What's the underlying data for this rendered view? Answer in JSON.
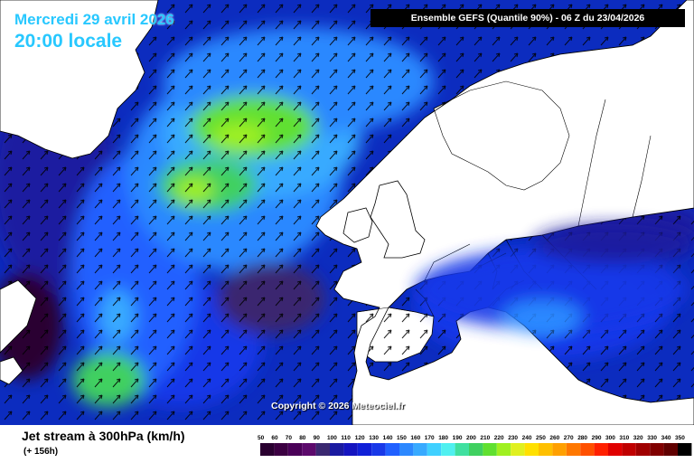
{
  "header": {
    "date_line": "Mercredi 29 avril 2026",
    "time_line": "20:00 locale",
    "run_label": "Ensemble GEFS  (Quantile 90%) - 06 Z du 23/04/2026"
  },
  "map": {
    "copyright": "Copyright © 2026 Meteociel.fr",
    "ocean_background": "#0c2cbf"
  },
  "footer": {
    "title": "Jet stream à 300hPa (km/h)",
    "subtitle": "(+ 156h)"
  },
  "legend": {
    "labels": [
      "50",
      "60",
      "70",
      "80",
      "90",
      "100",
      "110",
      "120",
      "130",
      "140",
      "150",
      "160",
      "170",
      "180",
      "190",
      "200",
      "210",
      "220",
      "230",
      "240",
      "250",
      "260",
      "270",
      "280",
      "290",
      "300",
      "310",
      "320",
      "330",
      "340",
      "350"
    ],
    "colors": [
      "#2a0030",
      "#3c0042",
      "#4a0058",
      "#5c0a6c",
      "#3a2870",
      "#1a1aa0",
      "#1414c0",
      "#1020d8",
      "#1838e8",
      "#2060ff",
      "#2c88ff",
      "#38aaff",
      "#40d0ff",
      "#50f0f0",
      "#40e0a0",
      "#40d060",
      "#60e030",
      "#a0f020",
      "#e0f020",
      "#ffe000",
      "#ffc000",
      "#ffa000",
      "#ff7800",
      "#ff5000",
      "#ff2000",
      "#e00000",
      "#c00000",
      "#a00000",
      "#800000",
      "#600000",
      "#000000"
    ]
  }
}
